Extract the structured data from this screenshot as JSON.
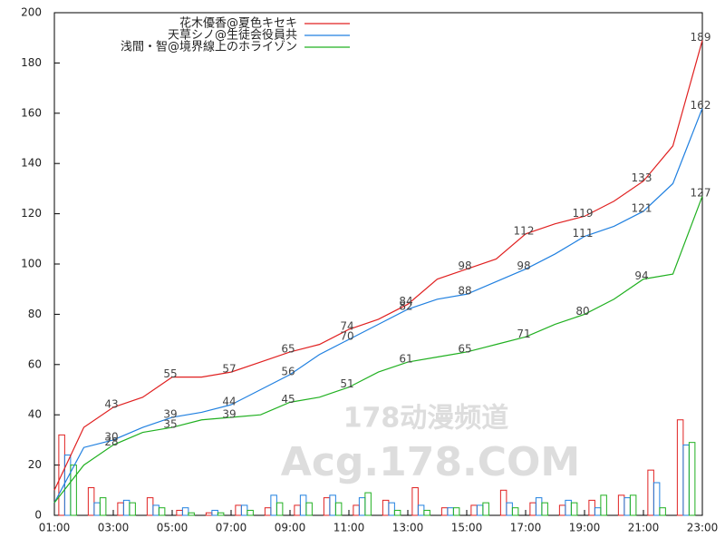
{
  "chart_data": {
    "type": "line",
    "x": [
      1,
      2,
      3,
      4,
      5,
      6,
      7,
      8,
      9,
      10,
      11,
      12,
      13,
      14,
      15,
      16,
      17,
      18,
      19,
      20,
      21,
      22,
      23
    ],
    "xlim": [
      1,
      23
    ],
    "xticks": [
      {
        "value": 1,
        "label": "01:00"
      },
      {
        "value": 3,
        "label": "03:00"
      },
      {
        "value": 5,
        "label": "05:00"
      },
      {
        "value": 7,
        "label": "07:00"
      },
      {
        "value": 9,
        "label": "09:00"
      },
      {
        "value": 11,
        "label": "11:00"
      },
      {
        "value": 13,
        "label": "13:00"
      },
      {
        "value": 15,
        "label": "15:00"
      },
      {
        "value": 17,
        "label": "17:00"
      },
      {
        "value": 19,
        "label": "19:00"
      },
      {
        "value": 21,
        "label": "21:00"
      },
      {
        "value": 23,
        "label": "23:00"
      }
    ],
    "ylim": [
      0,
      200
    ],
    "yticks": [
      0,
      20,
      40,
      60,
      80,
      100,
      120,
      140,
      160,
      180,
      200
    ],
    "bar_x": [
      1,
      2,
      3,
      4,
      5,
      6,
      7,
      8,
      9,
      10,
      11,
      12,
      13,
      14,
      15,
      16,
      17,
      18,
      19,
      20,
      21,
      22
    ],
    "series": [
      {
        "name": "花木優香@夏色キセキ",
        "color": "#e02020",
        "values": [
          10,
          35,
          43,
          47,
          55,
          55,
          57,
          61,
          65,
          68,
          74,
          78,
          84,
          94,
          98,
          102,
          112,
          116,
          119,
          125,
          133,
          147,
          189
        ],
        "bar_values": [
          32,
          11,
          5,
          7,
          2,
          1,
          4,
          3,
          4,
          7,
          4,
          6,
          11,
          3,
          4,
          10,
          5,
          4,
          6,
          8,
          18,
          38
        ]
      },
      {
        "name": "天草シノ@生徒会役員共",
        "color": "#2080e0",
        "values": [
          5,
          27,
          30,
          35,
          39,
          41,
          44,
          50,
          56,
          64,
          70,
          76,
          82,
          86,
          88,
          93,
          98,
          104,
          111,
          115,
          121,
          132,
          162
        ],
        "bar_values": [
          24,
          5,
          6,
          4,
          3,
          2,
          4,
          8,
          8,
          8,
          7,
          5,
          4,
          3,
          4,
          5,
          7,
          6,
          3,
          7,
          13,
          28
        ]
      },
      {
        "name": "浅間・智@境界線上のホライゾン",
        "color": "#20b020",
        "values": [
          5,
          20,
          28,
          33,
          35,
          38,
          39,
          40,
          45,
          47,
          51,
          57,
          61,
          63,
          65,
          68,
          71,
          76,
          80,
          86,
          94,
          96,
          127
        ],
        "bar_values": [
          20,
          7,
          5,
          3,
          1,
          1,
          2,
          5,
          5,
          5,
          9,
          2,
          2,
          3,
          5,
          3,
          5,
          5,
          8,
          8,
          3,
          29
        ]
      }
    ],
    "watermark": [
      "178动漫频道",
      "Acg.178.COM"
    ]
  }
}
